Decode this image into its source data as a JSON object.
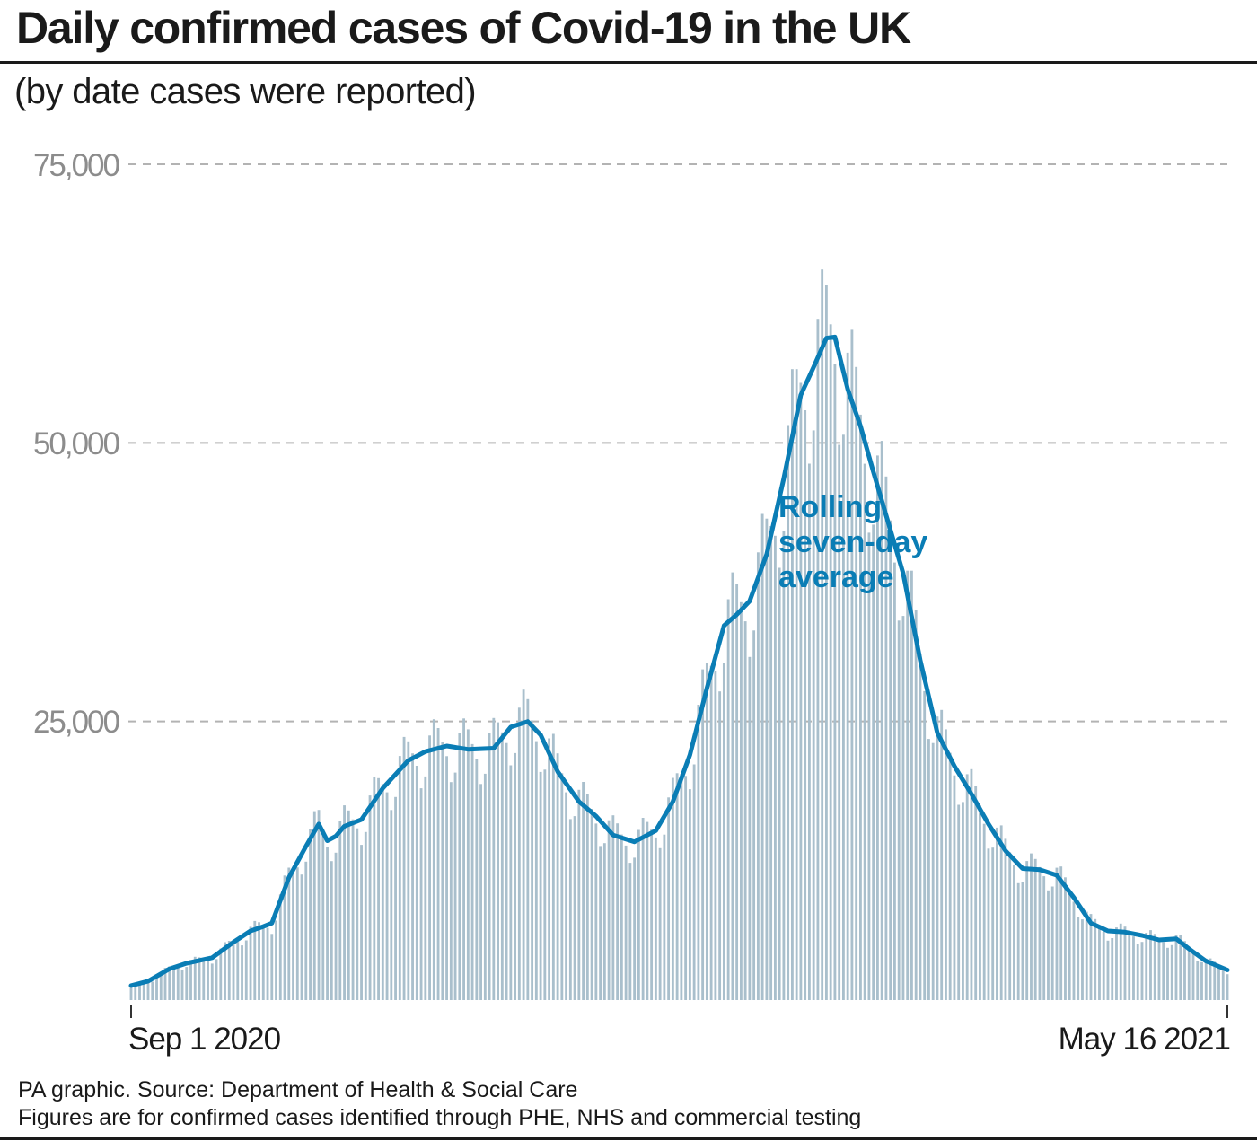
{
  "header": {
    "title": "Daily confirmed cases of Covid-19 in the UK",
    "subtitle": "(by date cases were reported)"
  },
  "footer": {
    "source": "PA graphic. Source: Department of Health & Social Care",
    "note": "Figures are for confirmed cases identified through PHE, NHS and commercial testing"
  },
  "colors": {
    "bars": "#a9bfcc",
    "line": "#0a7db5",
    "grid": "#b3b3b3",
    "tick_text": "#8c8c8c",
    "label": "#0a7db5"
  },
  "chart_data": {
    "type": "bar",
    "x_start": "2020-09-01",
    "x_end": "2021-05-16",
    "x_tick_labels": [
      "Sep 1 2020",
      "May 16 2021"
    ],
    "ylim": [
      0,
      75000
    ],
    "y_ticks": [
      25000,
      50000,
      75000
    ],
    "y_tick_labels": [
      "25,000",
      "50,000",
      "75,000"
    ],
    "grid": "horizontal dashed",
    "series": [
      {
        "name": "Rolling seven-day average",
        "type": "line",
        "points": [
          [
            "2020-09-01",
            1300
          ],
          [
            "2020-09-05",
            1700
          ],
          [
            "2020-09-10",
            2800
          ],
          [
            "2020-09-14",
            3300
          ],
          [
            "2020-09-20",
            3800
          ],
          [
            "2020-09-25",
            5200
          ],
          [
            "2020-09-29",
            6200
          ],
          [
            "2020-10-02",
            6600
          ],
          [
            "2020-10-04",
            6900
          ],
          [
            "2020-10-08",
            11000
          ],
          [
            "2020-10-12",
            13800
          ],
          [
            "2020-10-15",
            15800
          ],
          [
            "2020-10-17",
            14300
          ],
          [
            "2020-10-19",
            14700
          ],
          [
            "2020-10-21",
            15600
          ],
          [
            "2020-10-25",
            16200
          ],
          [
            "2020-10-30",
            19000
          ],
          [
            "2020-11-05",
            21500
          ],
          [
            "2020-11-09",
            22300
          ],
          [
            "2020-11-14",
            22800
          ],
          [
            "2020-11-19",
            22500
          ],
          [
            "2020-11-25",
            22600
          ],
          [
            "2020-11-29",
            24500
          ],
          [
            "2020-12-03",
            25000
          ],
          [
            "2020-12-06",
            23800
          ],
          [
            "2020-12-10",
            20500
          ],
          [
            "2020-12-15",
            17800
          ],
          [
            "2020-12-19",
            16500
          ],
          [
            "2020-12-23",
            14800
          ],
          [
            "2020-12-28",
            14200
          ],
          [
            "2021-01-02",
            15200
          ],
          [
            "2021-01-06",
            17800
          ],
          [
            "2021-01-10",
            22000
          ],
          [
            "2021-01-14",
            28000
          ],
          [
            "2021-01-18",
            33600
          ],
          [
            "2021-01-21",
            34600
          ],
          [
            "2021-01-24",
            35800
          ],
          [
            "2021-01-28",
            40000
          ],
          [
            "2021-02-01",
            46800
          ],
          [
            "2021-02-05",
            54300
          ],
          [
            "2021-02-08",
            56800
          ],
          [
            "2021-02-11",
            59400
          ],
          [
            "2021-02-13",
            59500
          ],
          [
            "2021-02-16",
            54800
          ],
          [
            "2021-02-19",
            51500
          ],
          [
            "2021-02-22",
            47400
          ],
          [
            "2021-02-25",
            43500
          ],
          [
            "2021-03-01",
            38300
          ],
          [
            "2021-03-05",
            30500
          ],
          [
            "2021-03-09",
            24000
          ],
          [
            "2021-03-13",
            21000
          ],
          [
            "2021-03-17",
            18500
          ],
          [
            "2021-03-21",
            15800
          ],
          [
            "2021-03-25",
            13400
          ],
          [
            "2021-03-29",
            11800
          ],
          [
            "2021-04-02",
            11700
          ],
          [
            "2021-04-06",
            11200
          ],
          [
            "2021-04-10",
            9200
          ],
          [
            "2021-04-14",
            6900
          ],
          [
            "2021-04-18",
            6200
          ],
          [
            "2021-04-22",
            6100
          ],
          [
            "2021-04-26",
            5800
          ],
          [
            "2021-04-30",
            5400
          ],
          [
            "2021-05-04",
            5500
          ],
          [
            "2021-05-07",
            4600
          ],
          [
            "2021-05-11",
            3500
          ],
          [
            "2021-05-16",
            2700
          ]
        ]
      }
    ],
    "annotations": [
      "Rolling",
      "seven-day",
      "average"
    ]
  }
}
